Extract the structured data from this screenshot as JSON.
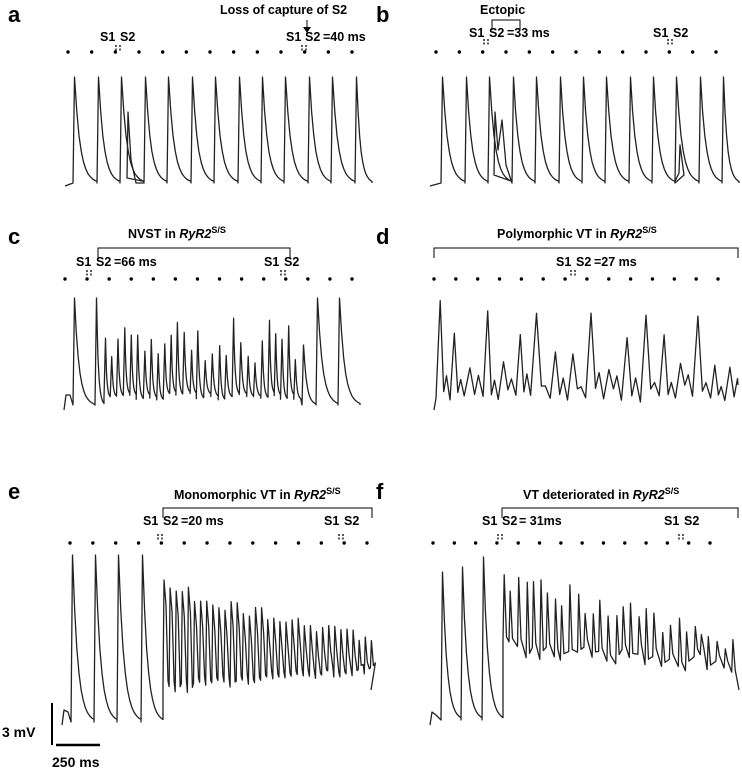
{
  "figure": {
    "scale_bar": {
      "voltage": "3 mV",
      "time": "250 ms"
    },
    "panels": [
      {
        "id": "a",
        "label": "a",
        "title": "Loss of capture of S2",
        "s1s2_labels": [
          {
            "s1": "S1",
            "s2": "S2",
            "interval": ""
          },
          {
            "s1": "S1",
            "s2": "S2",
            "interval": "=40 ms"
          }
        ]
      },
      {
        "id": "b",
        "label": "b",
        "title": "Ectopic",
        "s1s2_labels": [
          {
            "s1": "S1",
            "s2": "S2",
            "interval": "=33 ms"
          },
          {
            "s1": "S1",
            "s2": "S2",
            "interval": ""
          }
        ]
      },
      {
        "id": "c",
        "label": "c",
        "title_pre": "NVST in ",
        "title_gene": "RyR2",
        "title_sup": "S/S",
        "s1s2_labels": [
          {
            "s1": "S1",
            "s2": "S2",
            "interval": "=66 ms"
          },
          {
            "s1": "S1",
            "s2": "S2",
            "interval": ""
          }
        ]
      },
      {
        "id": "d",
        "label": "d",
        "title_pre": "Polymorphic VT in ",
        "title_gene": "RyR2",
        "title_sup": "S/S",
        "s1s2_labels": [
          {
            "s1": "S1",
            "s2": "S2",
            "interval": "=27 ms"
          }
        ]
      },
      {
        "id": "e",
        "label": "e",
        "title_pre": "Monomorphic VT in ",
        "title_gene": "RyR2",
        "title_sup": "S/S",
        "s1s2_labels": [
          {
            "s1": "S1",
            "s2": "S2",
            "interval": "=20 ms"
          },
          {
            "s1": "S1",
            "s2": "S2",
            "interval": ""
          }
        ]
      },
      {
        "id": "f",
        "label": "f",
        "title_pre": "VT deteriorated in ",
        "title_gene": "RyR2",
        "title_sup": "S/S",
        "s1s2_labels": [
          {
            "s1": "S1",
            "s2": "S2",
            "interval": "= 31ms"
          },
          {
            "s1": "S1",
            "s2": "S2",
            "interval": ""
          }
        ]
      }
    ]
  },
  "chart_data": [
    {
      "type": "line",
      "panel": "a",
      "description_visible": "Loss of capture of S2",
      "s1s2_interval_ms": 40
    },
    {
      "type": "line",
      "panel": "b",
      "description_visible": "Ectopic",
      "s1s2_interval_ms": 33
    },
    {
      "type": "line",
      "panel": "c",
      "description_visible": "NVST in RyR2 S/S",
      "s1s2_interval_ms": 66
    },
    {
      "type": "line",
      "panel": "d",
      "description_visible": "Polymorphic VT in RyR2 S/S",
      "s1s2_interval_ms": 27
    },
    {
      "type": "line",
      "panel": "e",
      "description_visible": "Monomorphic VT in RyR2 S/S",
      "s1s2_interval_ms": 20
    },
    {
      "type": "line",
      "panel": "f",
      "description_visible": "VT deteriorated in RyR2 S/S",
      "s1s2_interval_ms": 31
    }
  ]
}
